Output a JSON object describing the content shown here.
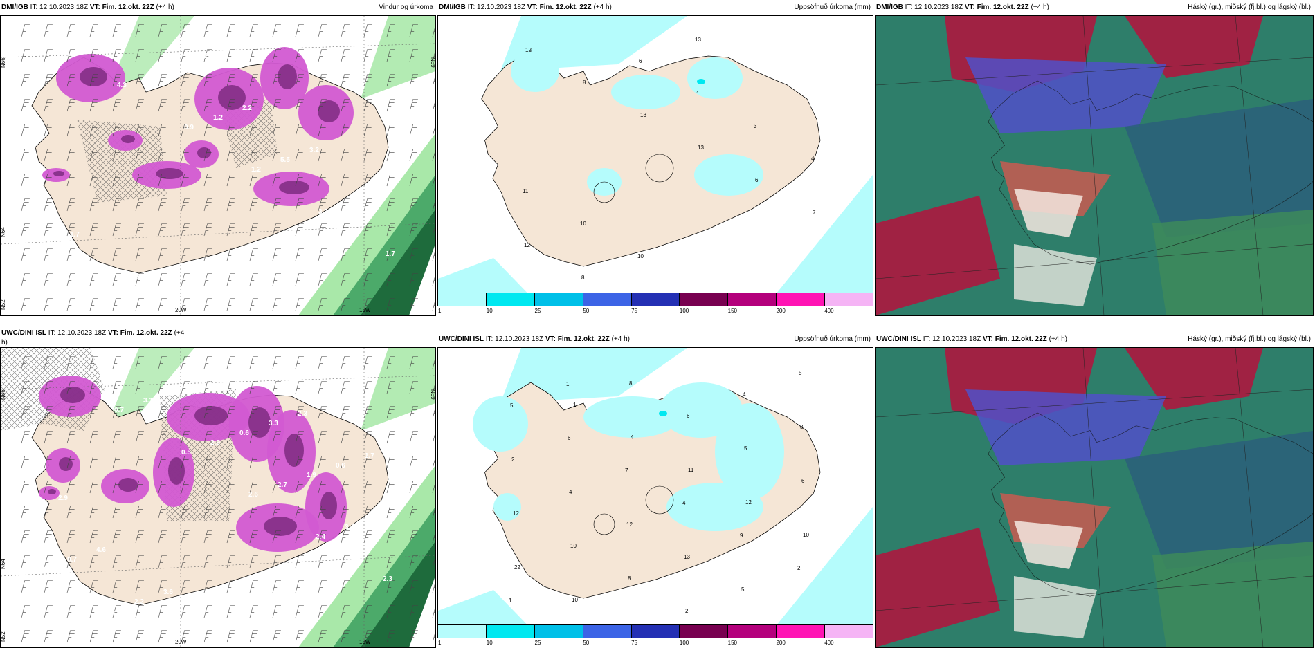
{
  "panels": {
    "p1": {
      "source": "DMI/IGB",
      "it_label": "IT:",
      "it": "12.10.2023 18Z",
      "vt_label": "VT: Fim. 12.okt. 22Z",
      "lead": "(+4 h)",
      "title": "Vindur og úrkoma",
      "values": [
        "0.8",
        "4.3",
        "0.9",
        "1.2",
        "3.3",
        "1.7",
        "2.1",
        "2.8",
        "1.2",
        "5.5",
        "3.7",
        "0.7",
        "1.7",
        "2.4",
        "2.2",
        "3.2",
        "1.5",
        "1.7",
        "1.2",
        "2.8"
      ],
      "axes": {
        "lat_top": "N66",
        "lat_mid": "N64",
        "lat_bot": "N52",
        "lon1": "20W",
        "lon2": "15W",
        "lat_right": "N59"
      }
    },
    "p2": {
      "source": "DMI/IGB",
      "it_label": "IT:",
      "it": "12.10.2023 18Z",
      "vt_label": "VT: Fim. 12.okt. 22Z",
      "lead": "(+4 h)",
      "title": "Uppsöfnuð úrkoma (mm)",
      "values": [
        "12",
        "8",
        "13",
        "13",
        "6",
        "7",
        "12",
        "8",
        "6",
        "1",
        "3",
        "4",
        "11",
        "10",
        "10",
        "13"
      ]
    },
    "p3": {
      "source": "DMI/IGB",
      "it_label": "IT:",
      "it": "12.10.2023 18Z",
      "vt_label": "VT: Fim. 12.okt. 22Z",
      "lead": "(+4 h)",
      "title": "Háský (gr.), miðský (fj.bl.) og lágský (bl.)"
    },
    "p4": {
      "source": "UWC/DINI ISL",
      "it_label": "IT:",
      "it": "12.10.2023 18Z",
      "vt_label": "VT: Fim. 12.okt. 22Z",
      "lead": "(+4",
      "lead2": "h)",
      "values": [
        "0.7",
        "0.5",
        "2.6",
        "2.4",
        "2.3",
        "4.1",
        "3.1",
        "2.9",
        "2.7",
        "3.4",
        "2.2",
        "2.6",
        "0.8",
        "0.6",
        "1.9",
        "1.9",
        "0.7",
        "2.2",
        "2.6",
        "3.3",
        "0.6",
        "3.5",
        "4.6",
        "3.6",
        "3.7",
        "2.3",
        "1.7",
        "2.9"
      ],
      "axes": {
        "lat_top": "N66",
        "lat_mid": "N64",
        "lat_bot": "N52",
        "lon1": "20W",
        "lon2": "15W",
        "lat_right": "N59"
      }
    },
    "p5": {
      "source": "UWC/DINI ISL",
      "it_label": "IT:",
      "it": "12.10.2023 18Z",
      "vt_label": "VT: Fim. 12.okt. 22Z",
      "lead": "(+4 h)",
      "title": "Uppsöfnuð úrkoma (mm)",
      "values": [
        "1",
        "4",
        "11",
        "12",
        "10",
        "22",
        "10",
        "8",
        "6",
        "5",
        "6",
        "12",
        "10",
        "8",
        "2",
        "4",
        "3",
        "2",
        "4",
        "12",
        "13",
        "5",
        "5",
        "5",
        "6",
        "7",
        "4",
        "9",
        "2",
        "1",
        "1"
      ]
    },
    "p6": {
      "source": "UWC/DINI ISL",
      "it_label": "IT:",
      "it": "12.10.2023 18Z",
      "vt_label": "VT: Fim. 12.okt. 22Z",
      "lead": "(+4 h)",
      "title": "Háský (gr.), miðský (fj.bl.) og lágský (bl.)"
    }
  },
  "colorbar": {
    "ticks": [
      "1",
      "10",
      "25",
      "50",
      "75",
      "100",
      "150",
      "200",
      "400"
    ],
    "colors": [
      "#b5fcfc",
      "#00e8f0",
      "#00c0e8",
      "#3c64e6",
      "#2430b4",
      "#780050",
      "#b4007c",
      "#ff14b4",
      "#f5b4f5"
    ]
  },
  "colors": {
    "land": "#f5e6d6",
    "sea": "#ffffff",
    "precip_low": "#b5fcfc",
    "heavy": "#d25ad2",
    "heavy_dark": "#78287c",
    "wind_green": "#a0e6a0",
    "green_dark": "#1e6b3c",
    "cloud_high": "#2e7e6a",
    "cloud_mid": "#b4123c",
    "cloud_low": "#5050c8"
  }
}
